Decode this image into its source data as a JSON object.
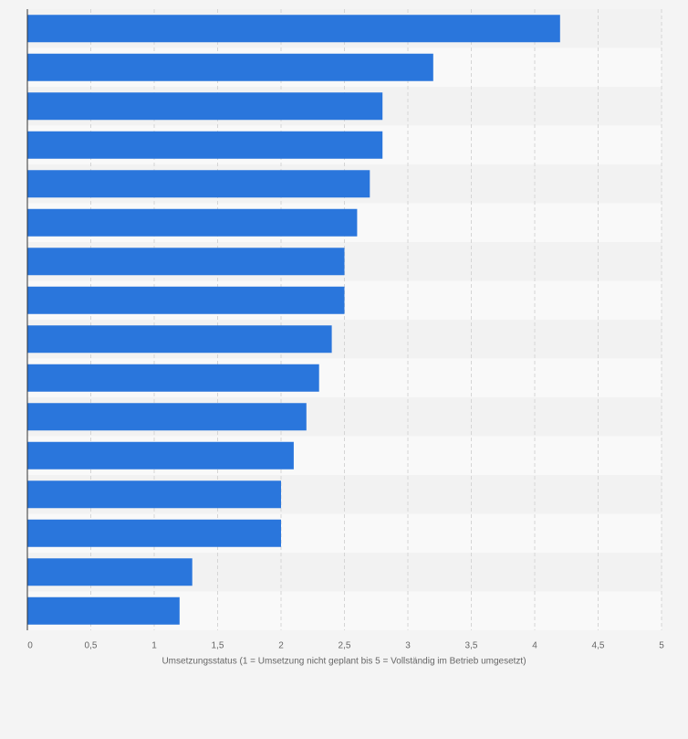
{
  "chart_data": {
    "type": "bar",
    "orientation": "horizontal",
    "xlabel": "Umsetzungsstatus (1 = Umsetzung nicht geplant bis 5 = Vollständig im Betrieb umgesetzt)",
    "categories": [
      null,
      null,
      null,
      null,
      null,
      null,
      null,
      null,
      null,
      null,
      null,
      null,
      null,
      null,
      null,
      null
    ],
    "values": [
      4.2,
      3.2,
      2.8,
      2.8,
      2.7,
      2.6,
      2.5,
      2.5,
      2.4,
      2.3,
      2.2,
      2.1,
      2.0,
      2.0,
      1.3,
      1.2
    ],
    "color": "#2a76dc",
    "xlim": [
      0,
      5
    ],
    "xticks": [
      0,
      {
        "value": 0.5,
        "label": "0,5"
      },
      1,
      {
        "value": 1.5,
        "label": "1,5"
      },
      2,
      {
        "value": 2.5,
        "label": "2,5"
      },
      3,
      {
        "value": 3.5,
        "label": "3,5"
      },
      4,
      {
        "value": 4.5,
        "label": "4,5"
      },
      5
    ],
    "grid": true
  }
}
